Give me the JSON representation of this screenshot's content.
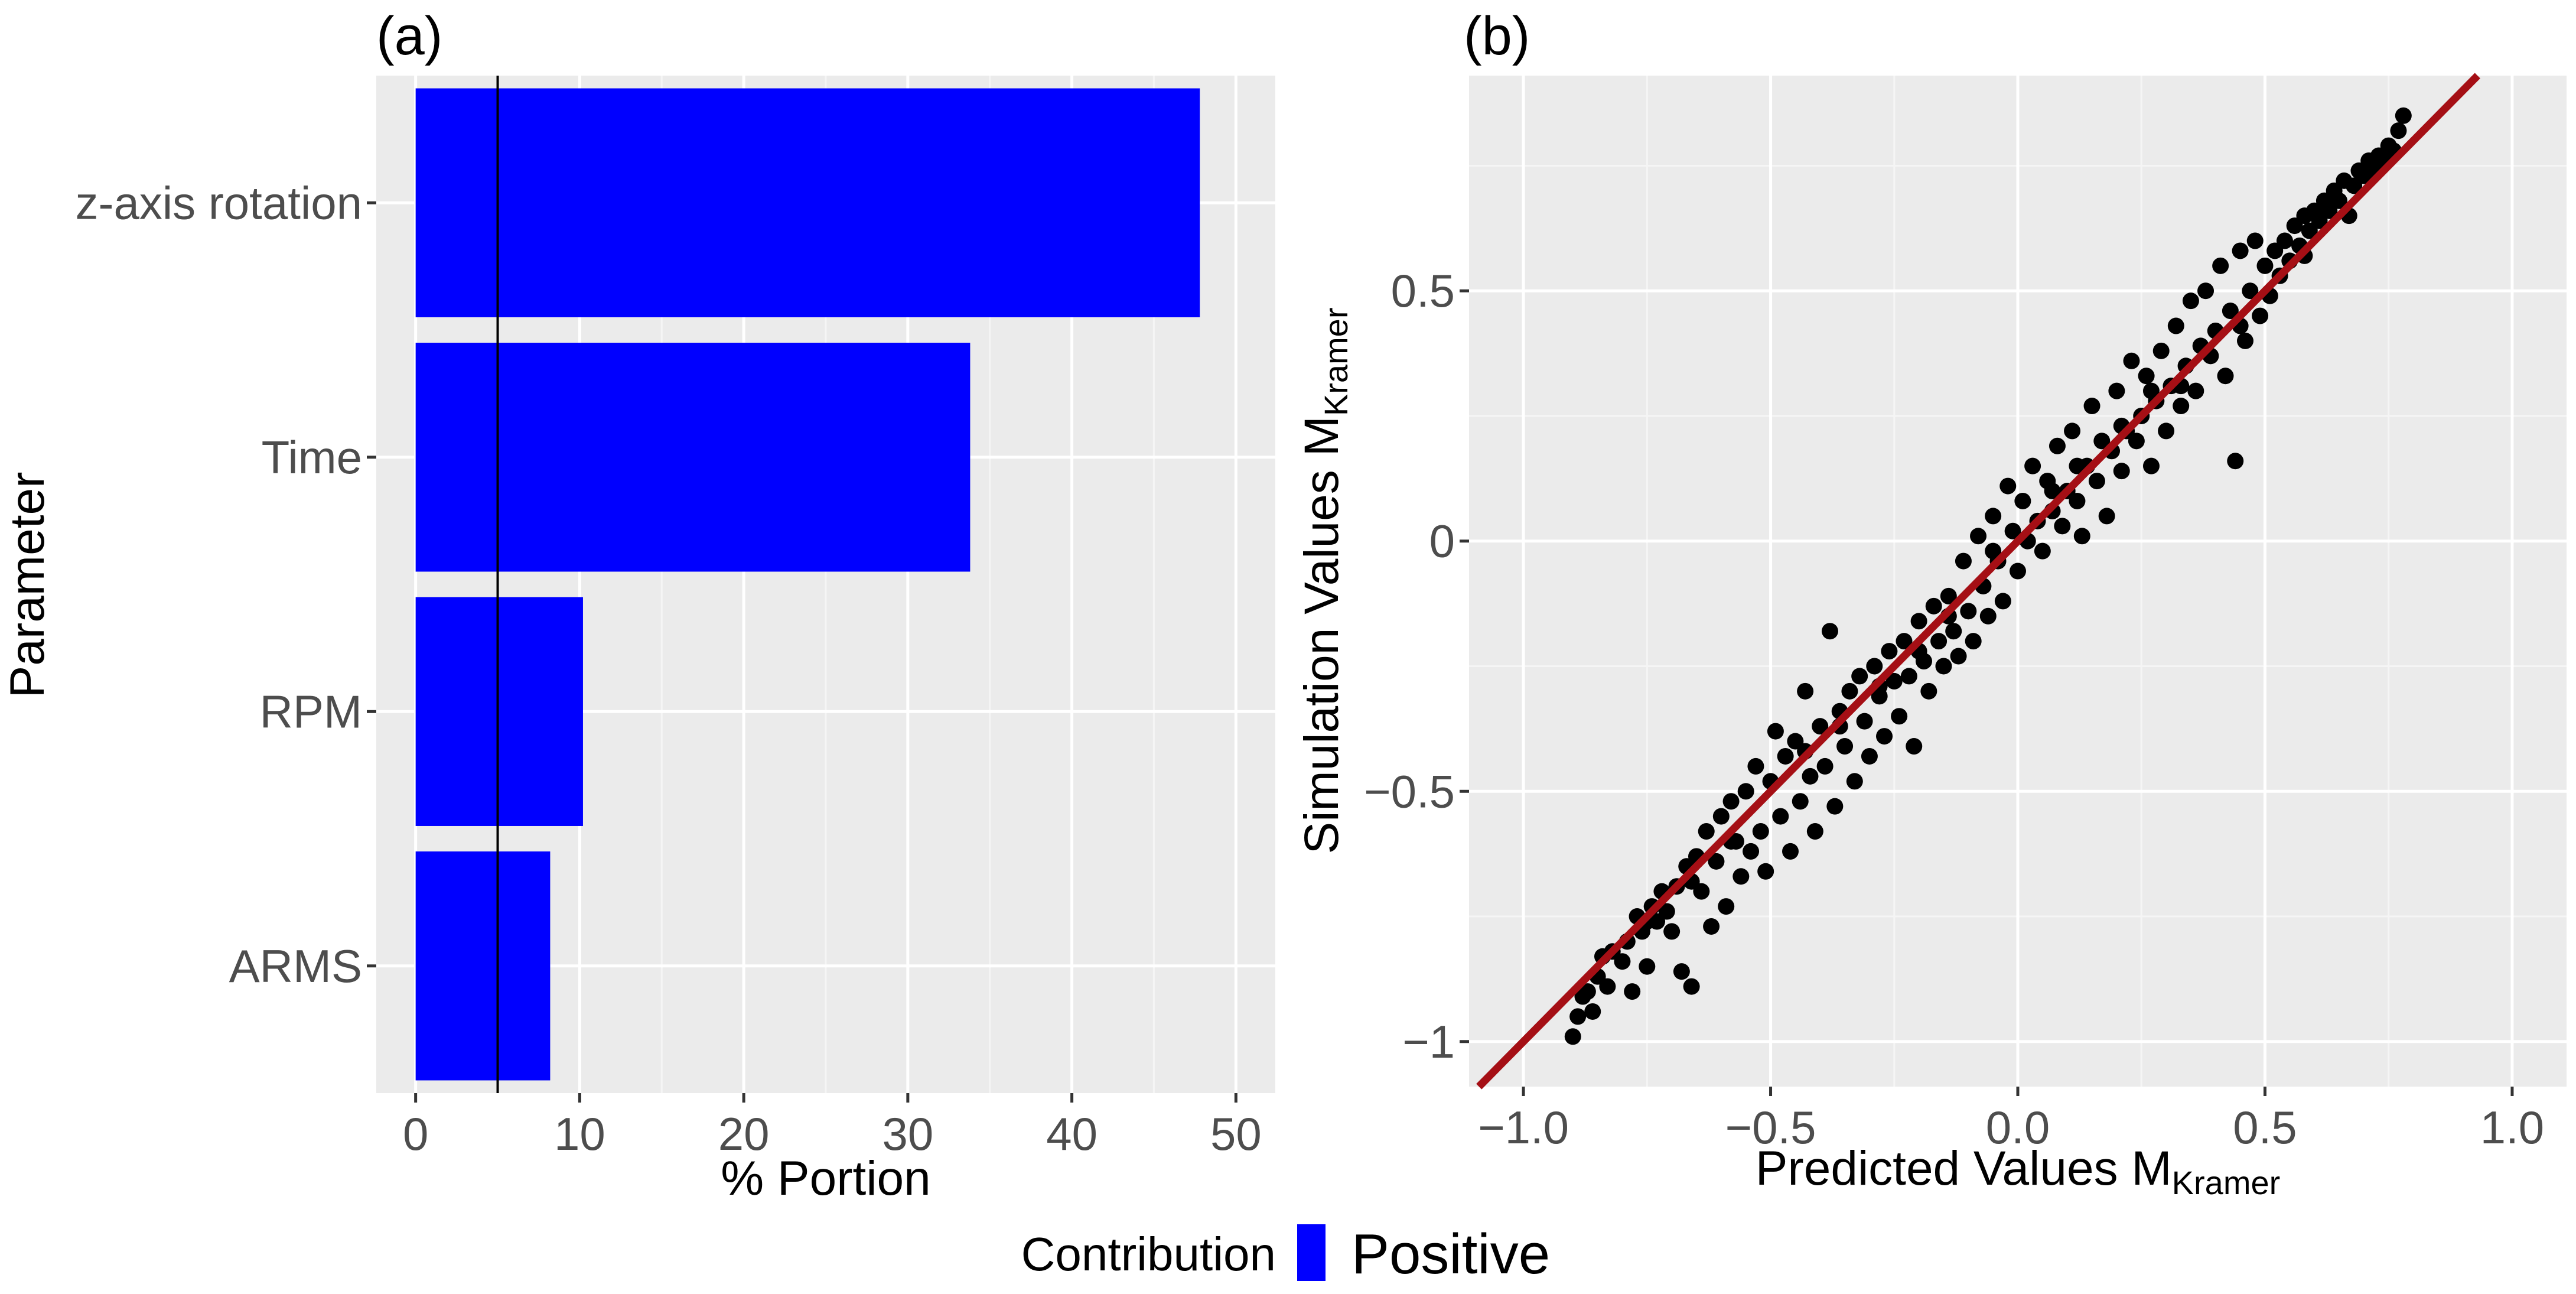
{
  "colors": {
    "panel_bg": "#ebebeb",
    "grid_major": "#ffffff",
    "grid_minor": "#f5f5f5",
    "bar": "#0000ff",
    "points": "#000000",
    "fit_line": "#a50f15",
    "ref_line": "#000000",
    "tick_text": "#4d4d4d"
  },
  "legend": {
    "title": "Contribution",
    "items": [
      {
        "label": "Positive",
        "color": "#0000ff"
      }
    ]
  },
  "chart_data": [
    {
      "panel": "(a)",
      "type": "bar",
      "orientation": "horizontal",
      "categories": [
        "z-axis rotation",
        "Time",
        "RPM",
        "ARMS"
      ],
      "values": [
        47.8,
        33.8,
        10.2,
        8.2
      ],
      "xlabel": "% Portion",
      "ylabel": "Parameter",
      "xlim": [
        -2.4,
        52.4
      ],
      "xticks": [
        0,
        10,
        20,
        30,
        40,
        50
      ],
      "reference_line_x": 5,
      "grid": true,
      "legend_position": "bottom",
      "series": [
        {
          "name": "Positive",
          "values": [
            47.8,
            33.8,
            10.2,
            8.2
          ]
        }
      ]
    },
    {
      "panel": "(b)",
      "type": "scatter",
      "xlabel": "Predicted Values M",
      "xlabel_sub": "Kramer",
      "ylabel": "Simulation Values M",
      "ylabel_sub": "Kramer",
      "xlim": [
        -1.11,
        1.11
      ],
      "ylim": [
        -1.09,
        0.93
      ],
      "xticks": [
        -1.0,
        -0.5,
        0.0,
        0.5,
        1.0
      ],
      "xtick_labels": [
        "-1.0",
        "-0.5",
        "0.0",
        "0.5",
        "1.0"
      ],
      "yticks": [
        -1,
        -0.5,
        0,
        0.5
      ],
      "ytick_labels": [
        "-1",
        "-0.5",
        "0",
        "0.5"
      ],
      "grid": true,
      "fit_line": {
        "slope": 1.0,
        "intercept": 0.0
      },
      "points": [
        [
          -0.9,
          -0.99
        ],
        [
          -0.89,
          -0.95
        ],
        [
          -0.88,
          -0.91
        ],
        [
          -0.87,
          -0.9
        ],
        [
          -0.86,
          -0.94
        ],
        [
          -0.85,
          -0.87
        ],
        [
          -0.84,
          -0.83
        ],
        [
          -0.83,
          -0.89
        ],
        [
          -0.82,
          -0.82
        ],
        [
          -0.8,
          -0.84
        ],
        [
          -0.79,
          -0.8
        ],
        [
          -0.78,
          -0.9
        ],
        [
          -0.77,
          -0.75
        ],
        [
          -0.76,
          -0.78
        ],
        [
          -0.75,
          -0.85
        ],
        [
          -0.74,
          -0.73
        ],
        [
          -0.73,
          -0.76
        ],
        [
          -0.72,
          -0.7
        ],
        [
          -0.71,
          -0.74
        ],
        [
          -0.7,
          -0.78
        ],
        [
          -0.69,
          -0.69
        ],
        [
          -0.68,
          -0.86
        ],
        [
          -0.67,
          -0.65
        ],
        [
          -0.66,
          -0.89
        ],
        [
          -0.65,
          -0.63
        ],
        [
          -0.64,
          -0.7
        ],
        [
          -0.63,
          -0.58
        ],
        [
          -0.62,
          -0.77
        ],
        [
          -0.61,
          -0.64
        ],
        [
          -0.6,
          -0.55
        ],
        [
          -0.59,
          -0.73
        ],
        [
          -0.58,
          -0.52
        ],
        [
          -0.57,
          -0.6
        ],
        [
          -0.56,
          -0.67
        ],
        [
          -0.55,
          -0.5
        ],
        [
          -0.54,
          -0.62
        ],
        [
          -0.53,
          -0.45
        ],
        [
          -0.52,
          -0.58
        ],
        [
          -0.51,
          -0.66
        ],
        [
          -0.5,
          -0.48
        ],
        [
          -0.49,
          -0.38
        ],
        [
          -0.48,
          -0.55
        ],
        [
          -0.47,
          -0.43
        ],
        [
          -0.46,
          -0.62
        ],
        [
          -0.45,
          -0.4
        ],
        [
          -0.44,
          -0.52
        ],
        [
          -0.43,
          -0.3
        ],
        [
          -0.42,
          -0.47
        ],
        [
          -0.41,
          -0.58
        ],
        [
          -0.4,
          -0.37
        ],
        [
          -0.39,
          -0.45
        ],
        [
          -0.38,
          -0.18
        ],
        [
          -0.37,
          -0.53
        ],
        [
          -0.36,
          -0.34
        ],
        [
          -0.35,
          -0.41
        ],
        [
          -0.34,
          -0.3
        ],
        [
          -0.33,
          -0.48
        ],
        [
          -0.32,
          -0.27
        ],
        [
          -0.31,
          -0.36
        ],
        [
          -0.3,
          -0.43
        ],
        [
          -0.29,
          -0.25
        ],
        [
          -0.28,
          -0.31
        ],
        [
          -0.27,
          -0.39
        ],
        [
          -0.26,
          -0.22
        ],
        [
          -0.25,
          -0.28
        ],
        [
          -0.24,
          -0.35
        ],
        [
          -0.23,
          -0.2
        ],
        [
          -0.22,
          -0.27
        ],
        [
          -0.21,
          -0.41
        ],
        [
          -0.2,
          -0.16
        ],
        [
          -0.19,
          -0.24
        ],
        [
          -0.18,
          -0.3
        ],
        [
          -0.17,
          -0.13
        ],
        [
          -0.16,
          -0.2
        ],
        [
          -0.15,
          -0.25
        ],
        [
          -0.14,
          -0.11
        ],
        [
          -0.13,
          -0.18
        ],
        [
          -0.12,
          -0.23
        ],
        [
          -0.11,
          -0.04
        ],
        [
          -0.1,
          -0.14
        ],
        [
          -0.09,
          -0.2
        ],
        [
          -0.08,
          0.01
        ],
        [
          -0.07,
          -0.09
        ],
        [
          -0.06,
          -0.15
        ],
        [
          -0.05,
          0.05
        ],
        [
          -0.04,
          -0.04
        ],
        [
          -0.03,
          -0.12
        ],
        [
          -0.02,
          0.11
        ],
        [
          -0.01,
          0.02
        ],
        [
          0.0,
          -0.06
        ],
        [
          0.01,
          0.08
        ],
        [
          0.02,
          0.0
        ],
        [
          0.03,
          0.15
        ],
        [
          0.04,
          0.04
        ],
        [
          0.05,
          -0.02
        ],
        [
          0.06,
          0.12
        ],
        [
          0.07,
          0.06
        ],
        [
          0.08,
          0.19
        ],
        [
          0.09,
          0.03
        ],
        [
          0.1,
          0.1
        ],
        [
          0.11,
          0.22
        ],
        [
          0.12,
          0.08
        ],
        [
          0.13,
          0.01
        ],
        [
          0.14,
          0.15
        ],
        [
          0.15,
          0.27
        ],
        [
          0.16,
          0.12
        ],
        [
          0.17,
          0.2
        ],
        [
          0.18,
          0.05
        ],
        [
          0.19,
          0.18
        ],
        [
          0.2,
          0.3
        ],
        [
          0.21,
          0.14
        ],
        [
          0.22,
          0.22
        ],
        [
          0.23,
          0.36
        ],
        [
          0.24,
          0.2
        ],
        [
          0.25,
          0.25
        ],
        [
          0.26,
          0.33
        ],
        [
          0.27,
          0.15
        ],
        [
          0.28,
          0.28
        ],
        [
          0.29,
          0.38
        ],
        [
          0.3,
          0.22
        ],
        [
          0.31,
          0.31
        ],
        [
          0.32,
          0.43
        ],
        [
          0.33,
          0.27
        ],
        [
          0.34,
          0.35
        ],
        [
          0.35,
          0.48
        ],
        [
          0.36,
          0.3
        ],
        [
          0.37,
          0.39
        ],
        [
          0.38,
          0.5
        ],
        [
          0.39,
          0.37
        ],
        [
          0.4,
          0.42
        ],
        [
          0.41,
          0.55
        ],
        [
          0.42,
          0.33
        ],
        [
          0.43,
          0.46
        ],
        [
          0.44,
          0.16
        ],
        [
          0.45,
          0.58
        ],
        [
          0.46,
          0.4
        ],
        [
          0.47,
          0.5
        ],
        [
          0.48,
          0.6
        ],
        [
          0.49,
          0.45
        ],
        [
          0.5,
          0.55
        ],
        [
          0.51,
          0.49
        ],
        [
          0.52,
          0.58
        ],
        [
          0.53,
          0.53
        ],
        [
          0.54,
          0.6
        ],
        [
          0.55,
          0.56
        ],
        [
          0.56,
          0.63
        ],
        [
          0.57,
          0.59
        ],
        [
          0.58,
          0.65
        ],
        [
          0.59,
          0.62
        ],
        [
          0.6,
          0.66
        ],
        [
          0.61,
          0.64
        ],
        [
          0.62,
          0.68
        ],
        [
          0.63,
          0.66
        ],
        [
          0.64,
          0.7
        ],
        [
          0.65,
          0.68
        ],
        [
          0.66,
          0.72
        ],
        [
          0.67,
          0.65
        ],
        [
          0.68,
          0.71
        ],
        [
          0.69,
          0.74
        ],
        [
          0.7,
          0.73
        ],
        [
          0.71,
          0.76
        ],
        [
          0.72,
          0.74
        ],
        [
          0.73,
          0.77
        ],
        [
          0.74,
          0.76
        ],
        [
          0.75,
          0.79
        ],
        [
          0.76,
          0.78
        ],
        [
          0.77,
          0.82
        ],
        [
          0.78,
          0.85
        ],
        [
          -0.36,
          -0.37
        ],
        [
          -0.05,
          -0.02
        ],
        [
          0.27,
          0.3
        ],
        [
          -0.58,
          -0.6
        ],
        [
          0.12,
          0.15
        ],
        [
          -0.2,
          -0.22
        ],
        [
          0.45,
          0.43
        ],
        [
          -0.75,
          -0.76
        ],
        [
          -0.43,
          -0.42
        ],
        [
          0.33,
          0.31
        ],
        [
          -0.66,
          -0.68
        ],
        [
          0.07,
          0.1
        ],
        [
          -0.28,
          -0.29
        ],
        [
          0.58,
          0.57
        ],
        [
          -0.14,
          -0.15
        ],
        [
          0.21,
          0.23
        ]
      ]
    }
  ]
}
